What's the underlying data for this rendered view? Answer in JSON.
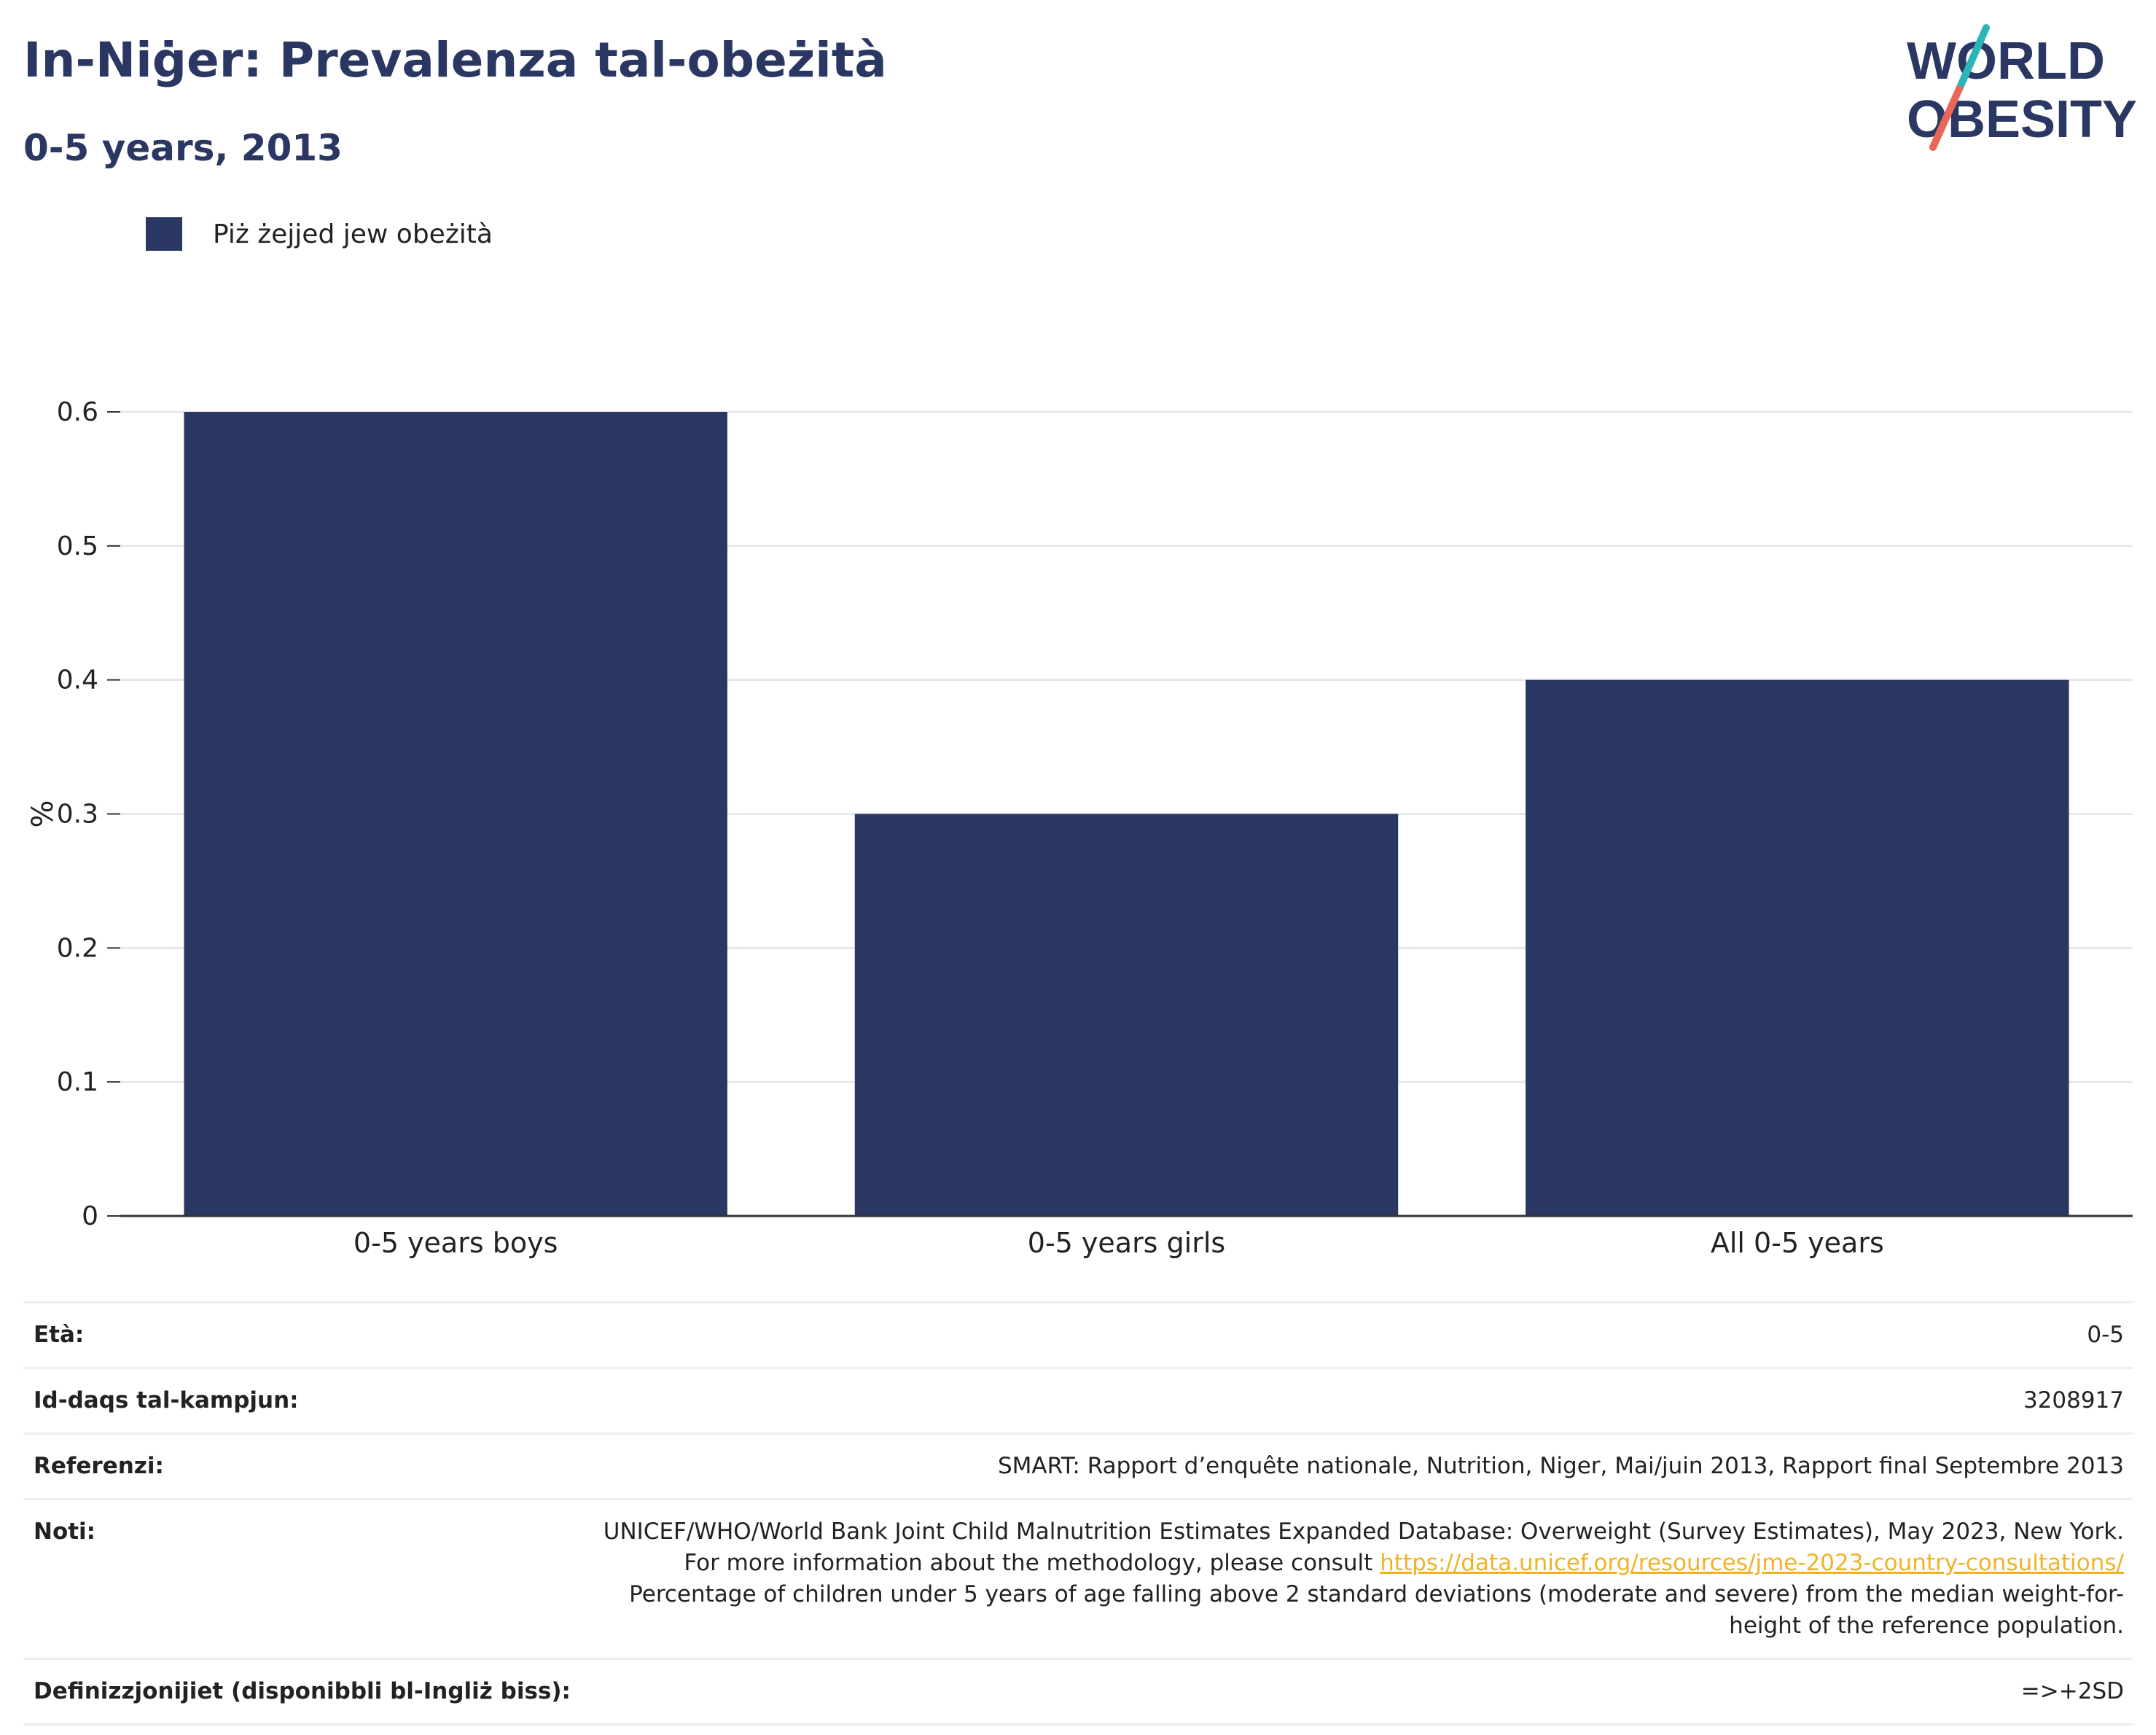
{
  "header": {
    "title": "In-Niġer: Prevalenza tal-obeżità",
    "subtitle": "0-5 years, 2013"
  },
  "logo": {
    "line1": "WORLD",
    "line2": "OBESITY",
    "colors": {
      "text": "#2a3762",
      "slash_top": "#2bb5b8",
      "slash_bottom": "#e8675a"
    }
  },
  "legend": {
    "label": "Piż żejjed jew obeżità",
    "color": "#2a3762"
  },
  "chart_data": {
    "type": "bar",
    "categories": [
      "0-5 years boys",
      "0-5 years girls",
      "All 0-5 years"
    ],
    "series": [
      {
        "name": "Piż żejjed jew obeżità",
        "values": [
          0.6,
          0.3,
          0.4
        ],
        "color": "#2a3762"
      }
    ],
    "ylabel": "%",
    "xlabel": "",
    "ylim": [
      0,
      0.6
    ],
    "yticks": [
      0,
      0.1,
      0.2,
      0.3,
      0.4,
      0.5,
      0.6
    ],
    "ytick_labels": [
      "0",
      "0.1",
      "0.2",
      "0.3",
      "0.4",
      "0.5",
      "0.6"
    ],
    "grid": true,
    "legend_position": "top-left"
  },
  "metadata": [
    {
      "key": "Età:",
      "value": "0-5"
    },
    {
      "key": "Id-daqs tal-kampjun:",
      "value": "3208917"
    },
    {
      "key": "Referenzi:",
      "value": "SMART: Rapport d’enquête nationale, Nutrition, Niger, Mai/juin 2013, Rapport final Septembre 2013"
    },
    {
      "key": "Noti:",
      "value_before": "UNICEF/WHO/World Bank Joint Child Malnutrition Estimates Expanded Database: Overweight (Survey Estimates), May 2023, New York. For more information about the methodology, please consult",
      "link": "https://data.unicef.org/resources/jme-2023-country-consultations/",
      "value_after": "Percentage of children under 5 years of age falling above 2 standard deviations (moderate and severe) from the median weight-for-height of the reference population."
    },
    {
      "key": "Definizzjonijiet (disponibbli bl-Ingliż biss):",
      "value": "=>+2SD"
    }
  ]
}
